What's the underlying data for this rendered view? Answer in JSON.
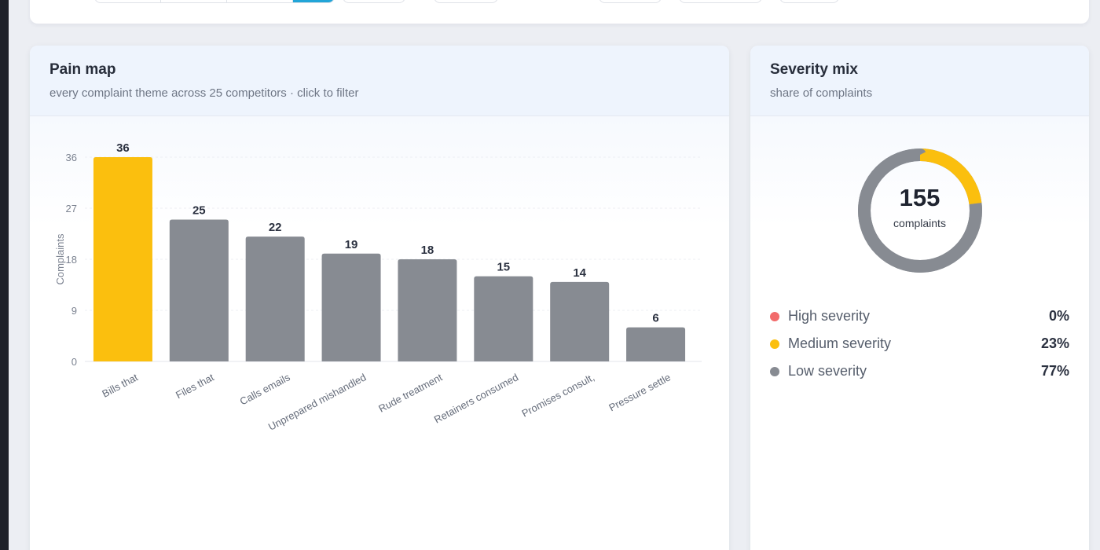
{
  "pain_map": {
    "title": "Pain map",
    "subtitle": "every complaint theme across 25 competitors · click to filter"
  },
  "severity": {
    "title": "Severity mix",
    "subtitle": "share of complaints",
    "total": "155",
    "total_label": "complaints",
    "items": [
      {
        "label": "High severity",
        "pct": "0%",
        "value": 0,
        "color": "#f26b6b"
      },
      {
        "label": "Medium severity",
        "pct": "23%",
        "value": 23,
        "color": "#fbbf0e"
      },
      {
        "label": "Low severity",
        "pct": "77%",
        "value": 77,
        "color": "#878b92"
      }
    ]
  },
  "chart_data": {
    "type": "bar",
    "categories": [
      "Bills that",
      "Files that",
      "Calls emails",
      "Unprepared mishandled",
      "Rude treatment",
      "Retainers consumed",
      "Promises consult,",
      "Pressure settle"
    ],
    "values": [
      36,
      25,
      22,
      19,
      18,
      15,
      14,
      6
    ],
    "ylabel": "Complaints",
    "xlabel": "",
    "ylim": [
      0,
      36
    ],
    "yticks": [
      0,
      9,
      18,
      27,
      36
    ],
    "highlight_index": 0,
    "highlight_color": "#fbbf0e",
    "bar_color": "#878b92"
  }
}
